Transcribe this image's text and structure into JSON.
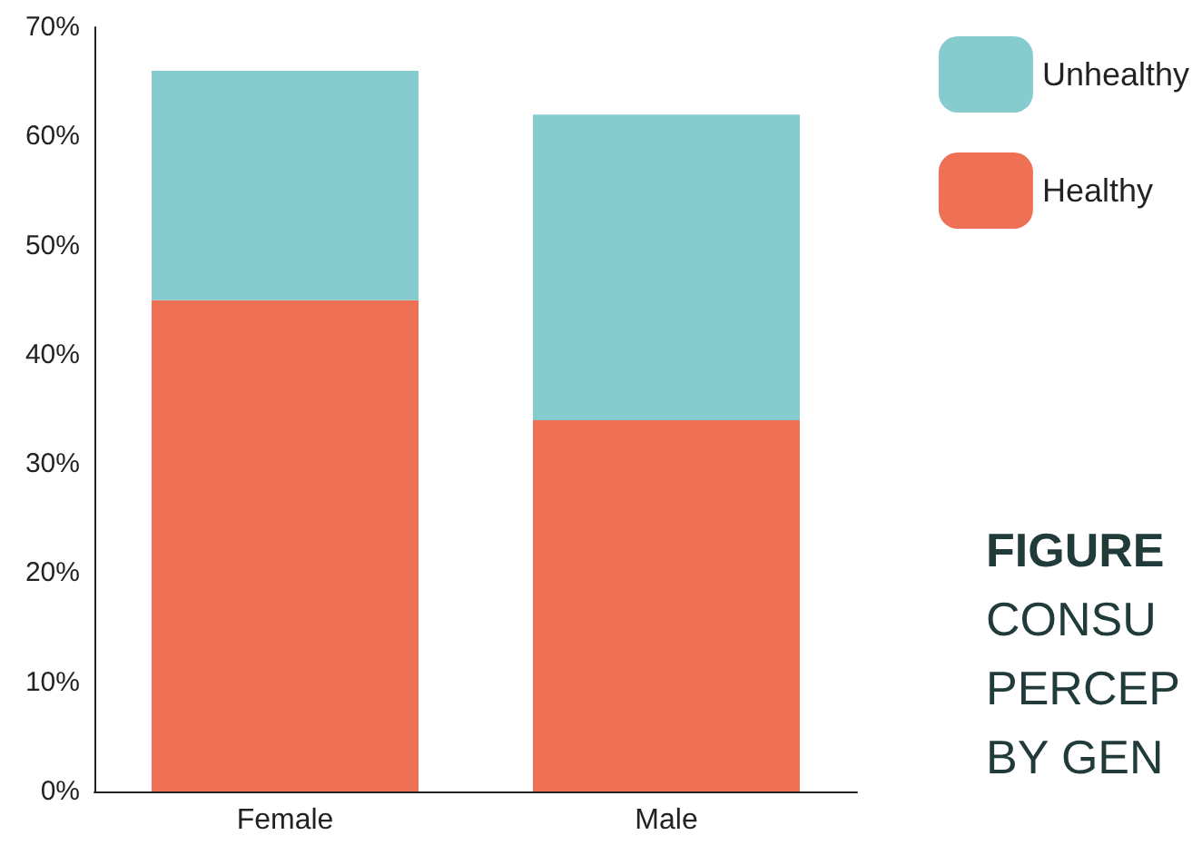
{
  "chart_data": {
    "type": "bar",
    "stacked": true,
    "categories": [
      "Female",
      "Male"
    ],
    "series": [
      {
        "name": "Healthy",
        "color": "#ee7155",
        "values": [
          45,
          34
        ]
      },
      {
        "name": "Unhealthy",
        "color": "#86cccf",
        "values": [
          21,
          28
        ]
      }
    ],
    "ylim": [
      0,
      70
    ],
    "yticks": [
      {
        "value": 0,
        "label": "0%"
      },
      {
        "value": 10,
        "label": "10%"
      },
      {
        "value": 20,
        "label": "20%"
      },
      {
        "value": 30,
        "label": "30%"
      },
      {
        "value": 40,
        "label": "40%"
      },
      {
        "value": 50,
        "label": "50%"
      },
      {
        "value": 60,
        "label": "60%"
      },
      {
        "value": 70,
        "label": "70%"
      }
    ],
    "grid": false,
    "legend": "top right",
    "annotations": [
      "FIGURE",
      "CONSU",
      "PERCEP",
      "BY GEN"
    ]
  }
}
